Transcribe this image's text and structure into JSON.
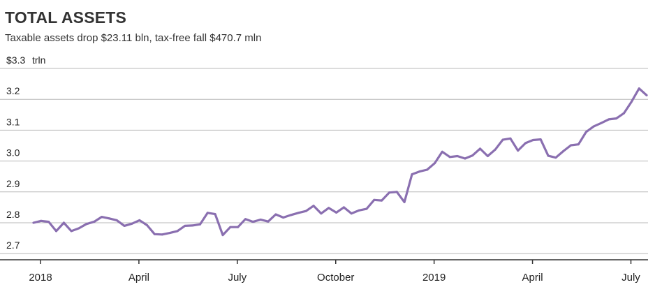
{
  "chart_data": {
    "type": "line",
    "title": "TOTAL ASSETS",
    "subtitle": "Taxable assets drop $23.11 bln, tax-free fall $470.7 mln",
    "unit_label": "trln",
    "y_ticks": [
      {
        "value": 3.3,
        "label": "$3.3"
      },
      {
        "value": 3.2,
        "label": "3.2"
      },
      {
        "value": 3.1,
        "label": "3.1"
      },
      {
        "value": 3.0,
        "label": "3.0"
      },
      {
        "value": 2.9,
        "label": "2.9"
      },
      {
        "value": 2.8,
        "label": "2.8"
      },
      {
        "value": 2.7,
        "label": "2.7"
      }
    ],
    "ylim": [
      2.68,
      3.3
    ],
    "x_ticks": [
      "2018",
      "April",
      "July",
      "October",
      "2019",
      "April",
      "July"
    ],
    "x_tick_index": [
      0,
      13,
      26,
      39,
      52,
      65,
      78
    ],
    "grid": true,
    "line_color": "#8a6fb0",
    "series": [
      {
        "values": [
          2.8,
          2.806,
          2.803,
          2.773,
          2.8,
          2.773,
          2.782,
          2.796,
          2.803,
          2.819,
          2.814,
          2.808,
          2.79,
          2.797,
          2.808,
          2.792,
          2.763,
          2.762,
          2.767,
          2.773,
          2.79,
          2.791,
          2.795,
          2.832,
          2.828,
          2.76,
          2.786,
          2.786,
          2.812,
          2.803,
          2.81,
          2.804,
          2.827,
          2.817,
          2.825,
          2.832,
          2.838,
          2.855,
          2.83,
          2.848,
          2.833,
          2.85,
          2.83,
          2.84,
          2.845,
          2.874,
          2.872,
          2.898,
          2.9,
          2.867,
          2.957,
          2.966,
          2.972,
          2.993,
          3.03,
          3.013,
          3.016,
          3.008,
          3.018,
          3.04,
          3.016,
          3.037,
          3.069,
          3.073,
          3.034,
          3.058,
          3.068,
          3.07,
          3.017,
          3.011,
          3.032,
          3.051,
          3.054,
          3.094,
          3.112,
          3.123,
          3.135,
          3.138,
          3.155,
          3.192,
          3.235,
          3.213
        ]
      }
    ]
  }
}
